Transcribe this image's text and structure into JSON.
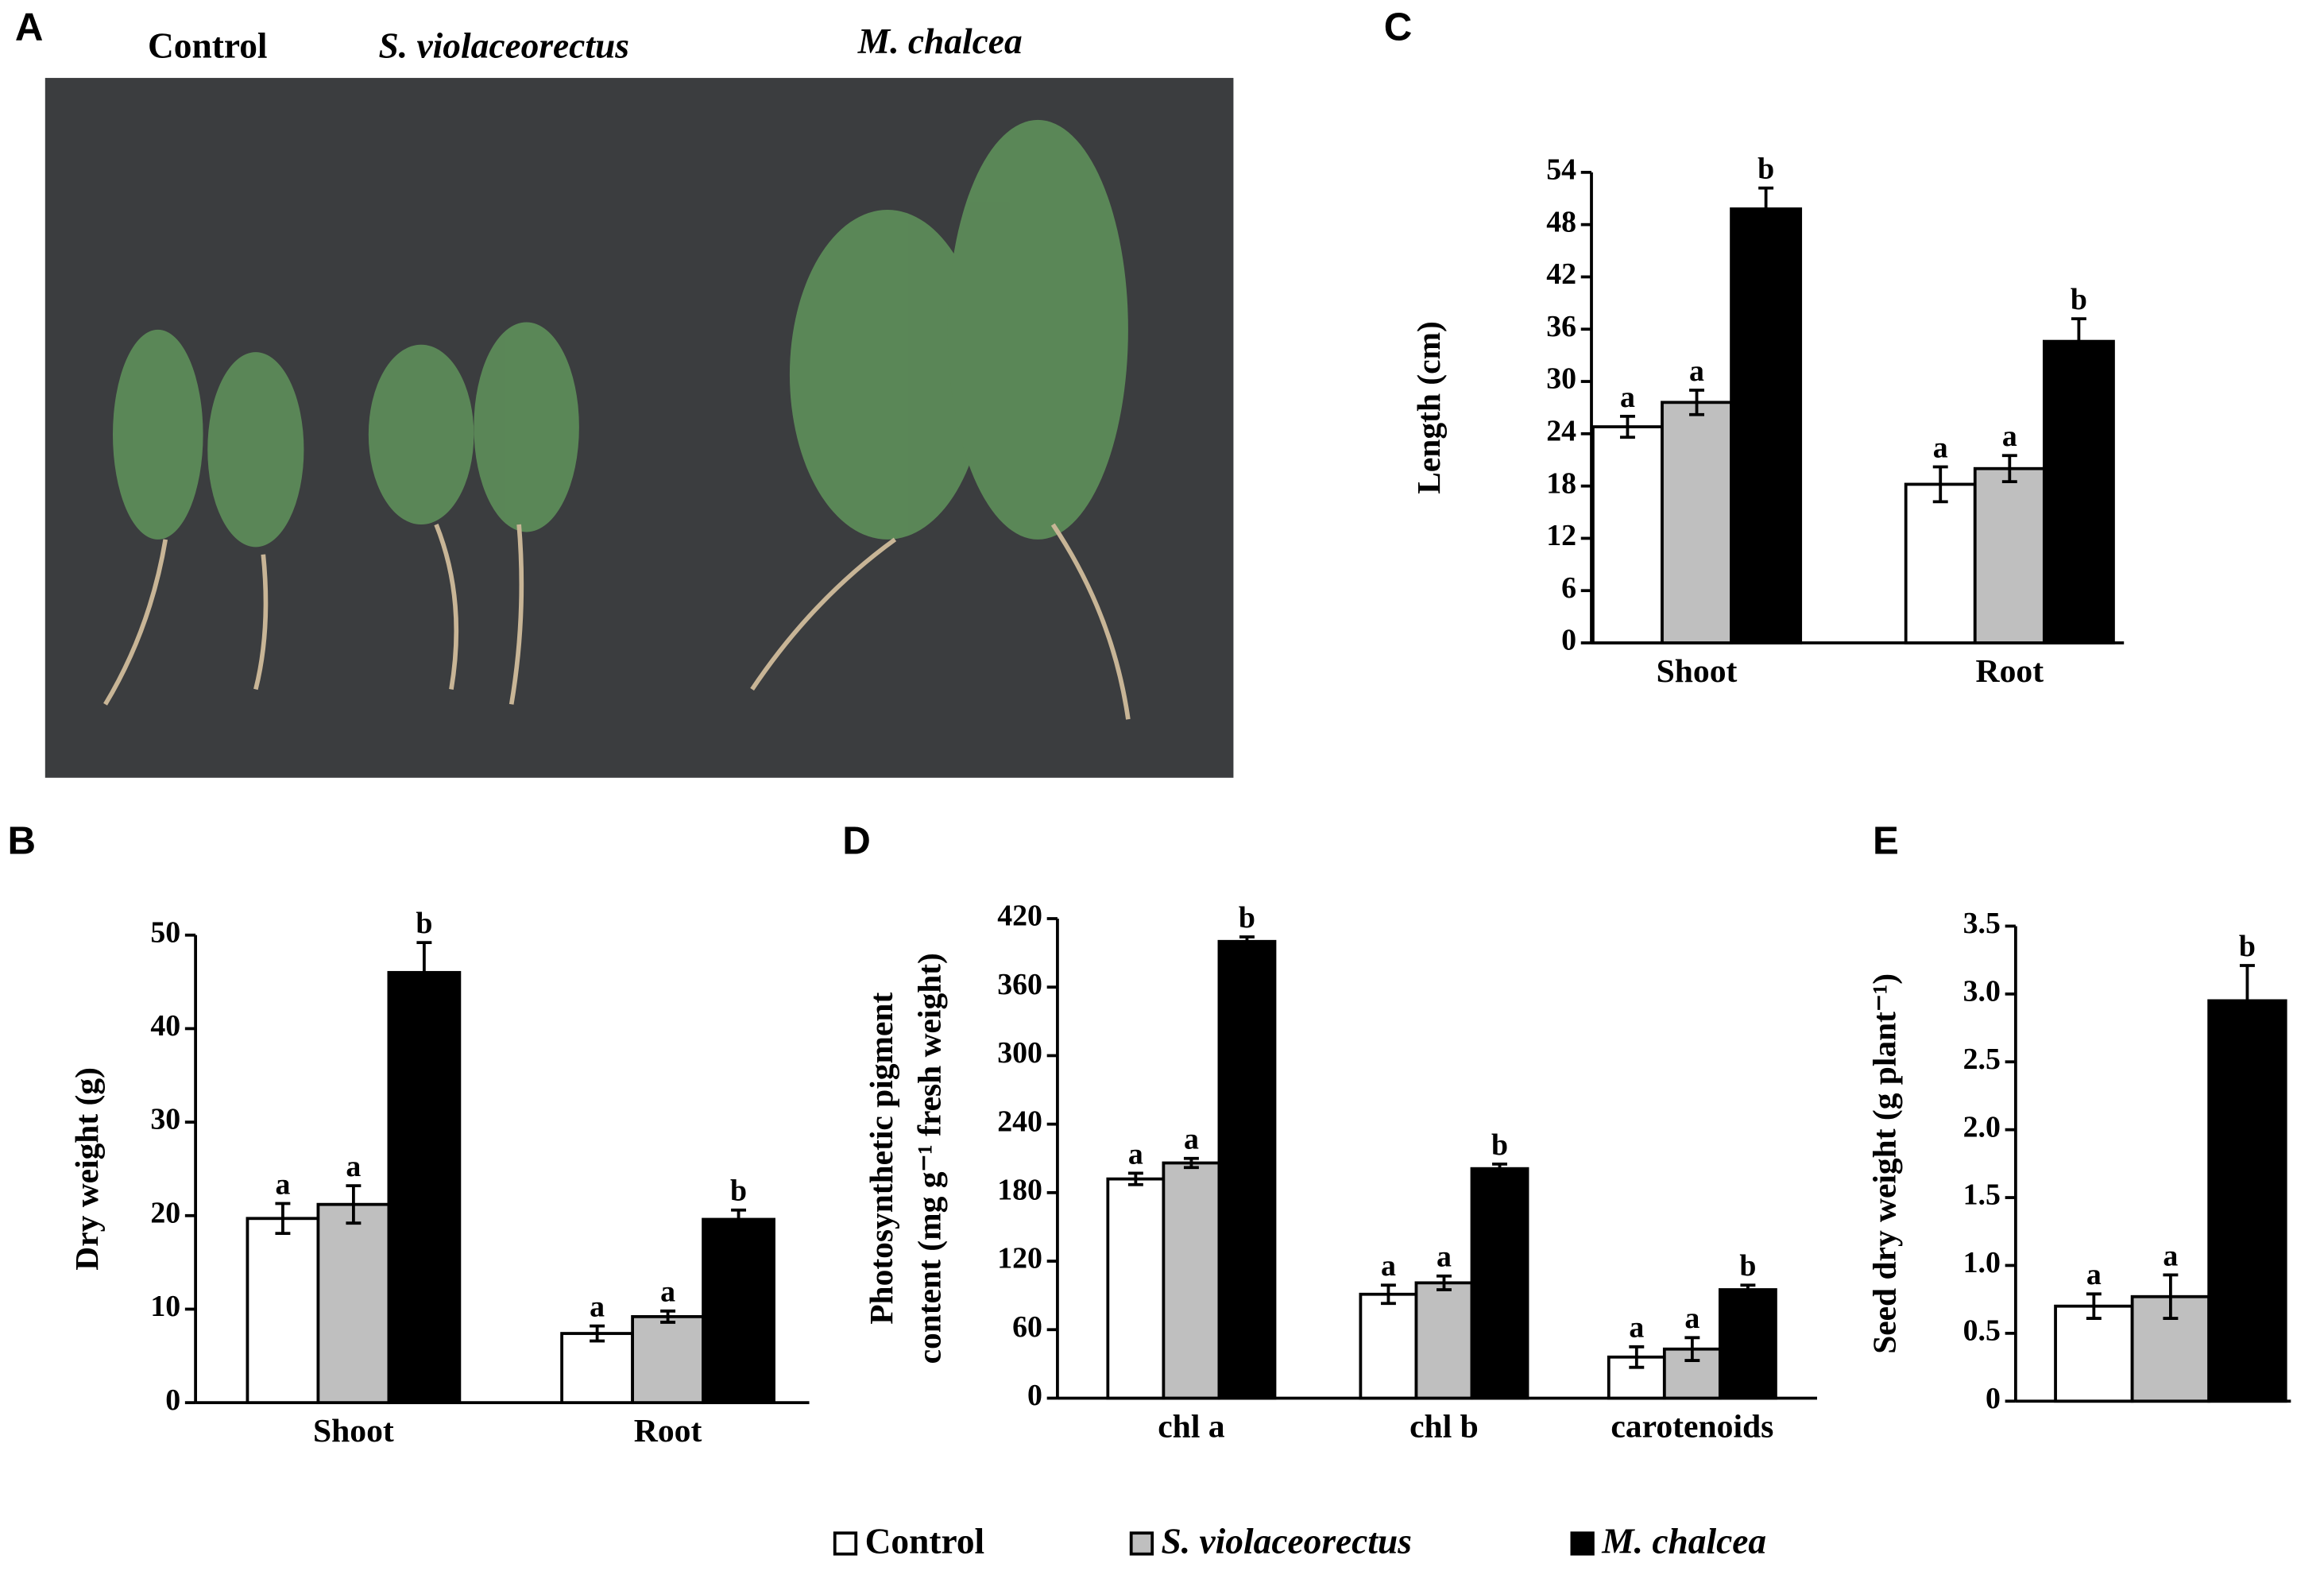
{
  "panel_labels": [
    "A",
    "B",
    "C",
    "D",
    "E"
  ],
  "photo": {
    "labels": [
      "Control",
      "S. violaceorectus",
      "M. chalcea"
    ]
  },
  "chart_data": [
    {
      "type": "bar",
      "ylabel": "Dry weight (g)",
      "categories": [
        "Shoot",
        "Root"
      ],
      "ylim": [
        0,
        50
      ],
      "yticks": [
        0,
        10,
        20,
        30,
        40,
        50
      ],
      "series": [
        {
          "name": "Control",
          "color": "#ffffff",
          "values": [
            19.7,
            7.4
          ],
          "errors": [
            1.6,
            0.8
          ],
          "significance": [
            "a",
            "a"
          ]
        },
        {
          "name": "S. violaceorectus",
          "color": "#bfbfbf",
          "values": [
            21.2,
            9.2
          ],
          "errors": [
            2.0,
            0.6
          ],
          "significance": [
            "a",
            "a"
          ]
        },
        {
          "name": "M. chalcea",
          "color": "#000000",
          "values": [
            46.0,
            19.6
          ],
          "errors": [
            3.2,
            1.0
          ],
          "significance": [
            "b",
            "b"
          ]
        }
      ]
    },
    {
      "type": "bar",
      "ylabel": "Length (cm)",
      "categories": [
        "Shoot",
        "Root"
      ],
      "ylim": [
        0,
        54
      ],
      "yticks": [
        0,
        6,
        12,
        18,
        24,
        30,
        36,
        42,
        48,
        54
      ],
      "series": [
        {
          "name": "Control",
          "color": "#ffffff",
          "values": [
            24.8,
            18.2
          ],
          "errors": [
            1.2,
            2.0
          ],
          "significance": [
            "a",
            "a"
          ]
        },
        {
          "name": "S. violaceorectus",
          "color": "#bfbfbf",
          "values": [
            27.6,
            20.0
          ],
          "errors": [
            1.4,
            1.5
          ],
          "significance": [
            "a",
            "a"
          ]
        },
        {
          "name": "M. chalcea",
          "color": "#000000",
          "values": [
            49.8,
            34.6
          ],
          "errors": [
            2.4,
            2.6
          ],
          "significance": [
            "b",
            "b"
          ]
        }
      ]
    },
    {
      "type": "bar",
      "ylabel": [
        "Photosynthetic pigment",
        "content (mg g⁻¹ fresh weight)"
      ],
      "categories": [
        "chl a",
        "chl b",
        "carotenoids"
      ],
      "ylim": [
        0,
        420
      ],
      "yticks": [
        0,
        60,
        120,
        180,
        240,
        300,
        360,
        420
      ],
      "series": [
        {
          "name": "Control",
          "color": "#ffffff",
          "values": [
            192,
            91,
            36
          ],
          "errors": [
            5,
            8,
            9
          ],
          "significance": [
            "a",
            "a",
            "a"
          ]
        },
        {
          "name": "S. violaceorectus",
          "color": "#bfbfbf",
          "values": [
            206,
            101,
            43
          ],
          "errors": [
            4,
            6,
            10
          ],
          "significance": [
            "a",
            "a",
            "a"
          ]
        },
        {
          "name": "M. chalcea",
          "color": "#000000",
          "values": [
            400,
            201,
            95
          ],
          "errors": [
            4,
            4,
            4
          ],
          "significance": [
            "b",
            "b",
            "b"
          ]
        }
      ]
    },
    {
      "type": "bar",
      "ylabel": "Seed dry weight (g plant⁻¹)",
      "categories": [
        null
      ],
      "ylim": [
        0,
        3.5
      ],
      "yticks": [
        0,
        0.5,
        {
          "value": 1,
          "label": "1.0"
        },
        1.5,
        {
          "value": 2,
          "label": "2.0"
        },
        2.5,
        {
          "value": 3,
          "label": "3.0"
        },
        3.5
      ],
      "series": [
        {
          "name": "Control",
          "color": "#ffffff",
          "values": [
            0.7
          ],
          "errors": [
            0.09
          ],
          "significance": [
            "a"
          ]
        },
        {
          "name": "S. violaceorectus",
          "color": "#bfbfbf",
          "values": [
            0.77
          ],
          "errors": [
            0.16
          ],
          "significance": [
            "a"
          ]
        },
        {
          "name": "M. chalcea",
          "color": "#000000",
          "values": [
            2.95
          ],
          "errors": [
            0.26
          ],
          "significance": [
            "b"
          ]
        }
      ]
    }
  ]
}
